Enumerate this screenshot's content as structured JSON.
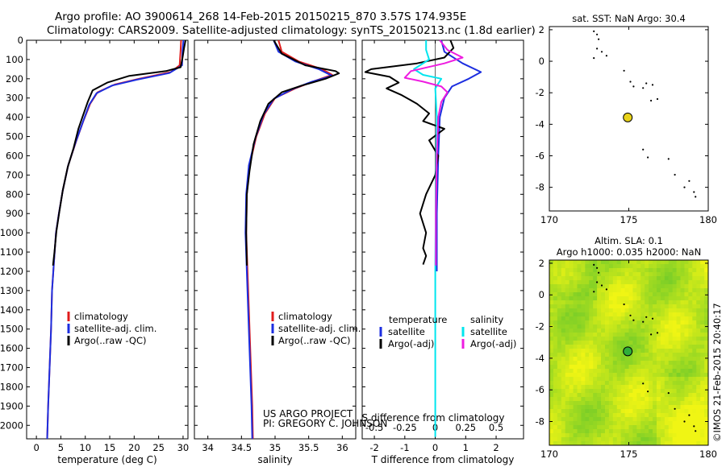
{
  "header": {
    "line1": "Argo profile: AO 3900614_268 14-Feb-2015 20150215_870 3.57S 174.935E",
    "line2": "Climatology: CARS2009. Satellite-adjusted climatology: synTS_20150213.nc (1.8d earlier)"
  },
  "credit": {
    "project": "US ARGO PROJECT",
    "pi": "PI: GREGORY C. JOHNSON"
  },
  "watermark": "©IMOS 21-Feb-2015 20:40:17",
  "colors": {
    "climatology": "#e01c1c",
    "satellite": "#1c2ee0",
    "argo": "#000000",
    "sal_satellite": "#00e5ee",
    "sal_argo": "#ee1ce0",
    "position": "#e8d21a"
  },
  "chart_data": [
    {
      "id": "temperature",
      "type": "line",
      "xlabel": "temperature (deg C)",
      "ylabel": "",
      "xlim": [
        -2,
        31
      ],
      "ylim": [
        2070,
        0
      ],
      "xticks": [
        0,
        5,
        10,
        15,
        20,
        25,
        30
      ],
      "yticks": [
        0,
        100,
        200,
        300,
        400,
        500,
        600,
        700,
        800,
        900,
        1000,
        1100,
        1200,
        1300,
        1400,
        1500,
        1600,
        1700,
        1800,
        1900,
        2000
      ],
      "legend": [
        "climatology",
        "satellite-adj. clim.",
        "Argo(..raw -QC)"
      ],
      "series": [
        {
          "name": "climatology",
          "color": "#e01c1c",
          "points": [
            [
              29.6,
              0
            ],
            [
              29.5,
              50
            ],
            [
              29.3,
              130
            ],
            [
              27.5,
              165
            ],
            [
              21,
              200
            ],
            [
              16,
              230
            ],
            [
              12.5,
              270
            ],
            [
              11,
              330
            ],
            [
              9.6,
              420
            ],
            [
              8.2,
              520
            ],
            [
              6.5,
              650
            ],
            [
              5.4,
              780
            ],
            [
              4.6,
              900
            ],
            [
              4,
              1000
            ],
            [
              3.6,
              1150
            ],
            [
              3.2,
              1300
            ],
            [
              3,
              1500
            ],
            [
              2.7,
              1700
            ],
            [
              2.4,
              1900
            ],
            [
              2.2,
              2070
            ]
          ]
        },
        {
          "name": "satellite-adj. clim.",
          "color": "#1c2ee0",
          "points": [
            [
              30.1,
              0
            ],
            [
              29.9,
              50
            ],
            [
              29.8,
              130
            ],
            [
              27.2,
              170
            ],
            [
              20.5,
              205
            ],
            [
              15.5,
              235
            ],
            [
              12.3,
              275
            ],
            [
              10.8,
              335
            ],
            [
              9.5,
              425
            ],
            [
              8.1,
              525
            ],
            [
              6.5,
              650
            ],
            [
              5.4,
              780
            ],
            [
              4.6,
              900
            ],
            [
              4,
              1000
            ],
            [
              3.6,
              1150
            ],
            [
              3.2,
              1300
            ],
            [
              3,
              1500
            ],
            [
              2.7,
              1700
            ],
            [
              2.4,
              1900
            ],
            [
              2.2,
              2070
            ]
          ]
        },
        {
          "name": "Argo(..raw -QC)",
          "color": "#000000",
          "points": [
            [
              30.5,
              0
            ],
            [
              30.2,
              40
            ],
            [
              29.9,
              90
            ],
            [
              29.5,
              140
            ],
            [
              26.5,
              160
            ],
            [
              19,
              185
            ],
            [
              14.5,
              220
            ],
            [
              11.5,
              260
            ],
            [
              10.5,
              320
            ],
            [
              9.4,
              400
            ],
            [
              8.6,
              460
            ],
            [
              7.6,
              560
            ],
            [
              6.4,
              660
            ],
            [
              5.4,
              780
            ],
            [
              4.7,
              890
            ],
            [
              4.1,
              990
            ],
            [
              3.7,
              1100
            ],
            [
              3.4,
              1170
            ]
          ]
        }
      ]
    },
    {
      "id": "salinity",
      "type": "line",
      "xlabel": "salinity",
      "ylabel": "",
      "xlim": [
        33.8,
        36.2
      ],
      "ylim": [
        2070,
        0
      ],
      "xticks": [
        34,
        34.5,
        35,
        35.5,
        36
      ],
      "legend": [
        "climatology",
        "satellite-adj. clim.",
        "Argo(..raw -QC)"
      ],
      "series": [
        {
          "name": "climatology",
          "color": "#e01c1c",
          "points": [
            [
              35.05,
              0
            ],
            [
              35.1,
              60
            ],
            [
              35.35,
              110
            ],
            [
              35.7,
              150
            ],
            [
              35.85,
              180
            ],
            [
              35.6,
              210
            ],
            [
              35.3,
              250
            ],
            [
              35,
              300
            ],
            [
              34.85,
              380
            ],
            [
              34.72,
              500
            ],
            [
              34.62,
              650
            ],
            [
              34.58,
              800
            ],
            [
              34.57,
              1000
            ],
            [
              34.6,
              1300
            ],
            [
              34.63,
              1600
            ],
            [
              34.66,
              1900
            ],
            [
              34.67,
              2070
            ]
          ]
        },
        {
          "name": "satellite-adj. clim.",
          "color": "#1c2ee0",
          "points": [
            [
              34.98,
              0
            ],
            [
              35.05,
              60
            ],
            [
              35.3,
              110
            ],
            [
              35.65,
              150
            ],
            [
              35.85,
              185
            ],
            [
              35.55,
              215
            ],
            [
              35.25,
              255
            ],
            [
              34.98,
              305
            ],
            [
              34.83,
              385
            ],
            [
              34.71,
              505
            ],
            [
              34.61,
              650
            ],
            [
              34.57,
              800
            ],
            [
              34.56,
              1000
            ],
            [
              34.59,
              1300
            ],
            [
              34.62,
              1600
            ],
            [
              34.65,
              1900
            ],
            [
              34.66,
              2070
            ]
          ]
        },
        {
          "name": "Argo(..raw -QC)",
          "color": "#000000",
          "points": [
            [
              34.98,
              0
            ],
            [
              35.1,
              70
            ],
            [
              35.45,
              130
            ],
            [
              35.9,
              160
            ],
            [
              35.95,
              172
            ],
            [
              35.75,
              200
            ],
            [
              35.4,
              235
            ],
            [
              35.1,
              270
            ],
            [
              34.9,
              330
            ],
            [
              34.78,
              420
            ],
            [
              34.68,
              540
            ],
            [
              34.62,
              680
            ],
            [
              34.58,
              800
            ],
            [
              34.57,
              1000
            ],
            [
              34.58,
              1170
            ]
          ]
        }
      ]
    },
    {
      "id": "difference",
      "type": "line",
      "xlabel": "T difference from climatology",
      "xlabel2": "S difference from climatology",
      "xlim": [
        -2.4,
        2.9
      ],
      "ylim": [
        2070,
        0
      ],
      "xticks": [
        -2,
        -1,
        0,
        1,
        2
      ],
      "xticks_top": [
        "-0.5",
        "-0.25",
        "0",
        "0.25",
        "0.5"
      ],
      "legend_headings": [
        "temperature",
        "salinity"
      ],
      "legend": [
        "satellite",
        "Argo(-adj)",
        "satellite",
        "Argo(-adj)"
      ],
      "series": [
        {
          "name": "satellite",
          "group": "temperature",
          "color": "#1c2ee0",
          "points": [
            [
              0.2,
              0
            ],
            [
              0.3,
              60
            ],
            [
              0.9,
              120
            ],
            [
              1.5,
              165
            ],
            [
              1.1,
              200
            ],
            [
              0.55,
              240
            ],
            [
              0.3,
              300
            ],
            [
              0.15,
              400
            ],
            [
              0.1,
              600
            ],
            [
              0.05,
              900
            ],
            [
              0.05,
              1200
            ]
          ]
        },
        {
          "name": "Argo(-adj)",
          "group": "temperature",
          "color": "#000000",
          "points": [
            [
              0.5,
              0
            ],
            [
              0.6,
              40
            ],
            [
              0.3,
              90
            ],
            [
              -0.6,
              120
            ],
            [
              -1.6,
              140
            ],
            [
              -2.1,
              150
            ],
            [
              -2.3,
              165
            ],
            [
              -1.5,
              190
            ],
            [
              -1.2,
              220
            ],
            [
              -1.6,
              250
            ],
            [
              -1.1,
              285
            ],
            [
              -0.6,
              330
            ],
            [
              -0.2,
              380
            ],
            [
              -0.4,
              420
            ],
            [
              0.3,
              460
            ],
            [
              -0.2,
              520
            ],
            [
              0.1,
              600
            ],
            [
              0,
              700
            ],
            [
              -0.3,
              800
            ],
            [
              -0.5,
              900
            ],
            [
              -0.3,
              1000
            ],
            [
              -0.4,
              1080
            ],
            [
              -0.3,
              1120
            ],
            [
              -0.4,
              1165
            ]
          ]
        },
        {
          "name": "satellite",
          "group": "salinity",
          "color": "#00e5ee",
          "points": [
            [
              -0.3,
              0
            ],
            [
              -0.3,
              50
            ],
            [
              -0.2,
              100
            ],
            [
              -0.7,
              150
            ],
            [
              -0.4,
              180
            ],
            [
              0.2,
              200
            ],
            [
              0,
              250
            ],
            [
              0.05,
              400
            ],
            [
              0.02,
              800
            ],
            [
              0,
              1200
            ],
            [
              0,
              1600
            ],
            [
              0,
              2060
            ]
          ]
        },
        {
          "name": "Argo(-adj)",
          "group": "salinity",
          "color": "#ee1ce0",
          "points": [
            [
              0.15,
              0
            ],
            [
              0.4,
              50
            ],
            [
              0.9,
              90
            ],
            [
              0.3,
              120
            ],
            [
              -0.8,
              160
            ],
            [
              -1.0,
              195
            ],
            [
              -0.4,
              215
            ],
            [
              0.2,
              240
            ],
            [
              0.4,
              270
            ],
            [
              0.2,
              320
            ],
            [
              0.1,
              400
            ],
            [
              0.05,
              600
            ],
            [
              0.02,
              900
            ],
            [
              0.02,
              1170
            ]
          ]
        }
      ]
    },
    {
      "id": "map-sst",
      "type": "scatter",
      "title": "sat. SST: NaN Argo: 30.4",
      "xlim": [
        170,
        180
      ],
      "ylim": [
        -9.5,
        2.2
      ],
      "xticks": [
        170,
        175,
        180
      ],
      "yticks": [
        -8,
        -6,
        -4,
        -2,
        0,
        2
      ],
      "marker": {
        "x": 174.935,
        "y": -3.57,
        "color": "#e8d21a"
      },
      "coastline": [
        [
          172.8,
          1.9
        ],
        [
          173,
          1.7
        ],
        [
          173.1,
          1.4
        ],
        [
          173,
          0.8
        ],
        [
          173.3,
          0.6
        ],
        [
          173.6,
          0.35
        ],
        [
          172.8,
          0.2
        ],
        [
          174.7,
          -0.6
        ],
        [
          175.1,
          -1.3
        ],
        [
          175.3,
          -1.6
        ],
        [
          176.1,
          -1.4
        ],
        [
          176.5,
          -1.5
        ],
        [
          175.9,
          -1.7
        ],
        [
          176.8,
          -2.4
        ],
        [
          176.4,
          -2.5
        ],
        [
          175.9,
          -5.6
        ],
        [
          176.2,
          -6.1
        ],
        [
          177.5,
          -6.2
        ],
        [
          177.9,
          -7.2
        ],
        [
          178.8,
          -7.6
        ],
        [
          178.5,
          -8.0
        ],
        [
          179.1,
          -8.3
        ],
        [
          179.2,
          -8.6
        ]
      ]
    },
    {
      "id": "map-sla",
      "type": "heatmap",
      "title": "Altim. SLA: 0.1",
      "subtitle": "Argo h1000: 0.035 h2000: NaN",
      "xlim": [
        170,
        180
      ],
      "ylim": [
        -9.5,
        2.2
      ],
      "xticks": [
        170,
        175,
        180
      ],
      "yticks": [
        -8,
        -6,
        -4,
        -2,
        0,
        2
      ],
      "marker": {
        "x": 174.935,
        "y": -3.57,
        "color": "#2fae3a"
      },
      "coastline": [
        [
          172.8,
          1.9
        ],
        [
          173,
          1.7
        ],
        [
          173.1,
          1.4
        ],
        [
          173,
          0.8
        ],
        [
          173.3,
          0.6
        ],
        [
          173.6,
          0.35
        ],
        [
          172.8,
          0.2
        ],
        [
          174.7,
          -0.6
        ],
        [
          175.1,
          -1.3
        ],
        [
          175.3,
          -1.6
        ],
        [
          176.1,
          -1.4
        ],
        [
          176.5,
          -1.5
        ],
        [
          175.9,
          -1.7
        ],
        [
          176.8,
          -2.4
        ],
        [
          176.4,
          -2.5
        ],
        [
          175.9,
          -5.6
        ],
        [
          176.2,
          -6.1
        ],
        [
          177.5,
          -6.2
        ],
        [
          177.9,
          -7.2
        ],
        [
          178.8,
          -7.6
        ],
        [
          178.5,
          -8.0
        ],
        [
          179.1,
          -8.3
        ],
        [
          179.2,
          -8.6
        ]
      ]
    }
  ]
}
